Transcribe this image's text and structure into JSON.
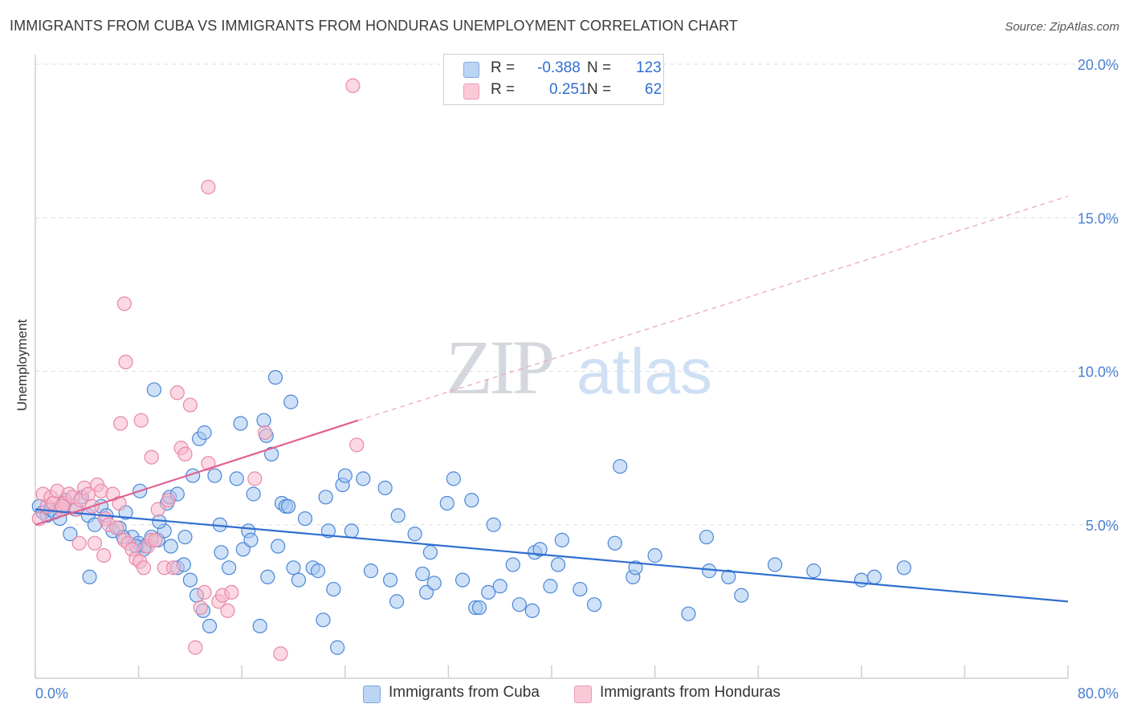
{
  "title": "IMMIGRANTS FROM CUBA VS IMMIGRANTS FROM HONDURAS UNEMPLOYMENT CORRELATION CHART",
  "source": "Source: ZipAtlas.com",
  "watermark": {
    "zip": "ZIP",
    "atlas": "atlas"
  },
  "legend": {
    "rows": [
      {
        "r_label": "R =",
        "r_value": "-0.388",
        "n_label": "N =",
        "n_value": "123",
        "color": "#a8c8f0"
      },
      {
        "r_label": "R =",
        "r_value": "0.251",
        "n_label": "N =",
        "n_value": "62",
        "color": "#f7b8cb"
      }
    ]
  },
  "bottom_legend": [
    {
      "label": "Immigrants from Cuba",
      "color": "#a8c8f0"
    },
    {
      "label": "Immigrants from Honduras",
      "color": "#f7b8cb"
    }
  ],
  "chart_data": {
    "type": "scatter",
    "xlabel": "",
    "ylabel": "Unemployment",
    "xlim": [
      0,
      80
    ],
    "ylim": [
      0,
      20
    ],
    "x_tick_labels": [
      "0.0%",
      "80.0%"
    ],
    "y_ticks": [
      5,
      10,
      15,
      20
    ],
    "y_tick_labels": [
      "5.0%",
      "10.0%",
      "15.0%",
      "20.0%"
    ],
    "grid": true,
    "legend_position": "top-center",
    "series": [
      {
        "name": "Immigrants from Cuba",
        "color": "#4a86d8",
        "fill": "#a8c8f0",
        "trend": {
          "x": [
            0,
            80
          ],
          "y": [
            5.5,
            2.5
          ],
          "color": "#2f6fcf"
        },
        "points": [
          [
            0.3,
            5.6
          ],
          [
            0.6,
            5.4
          ],
          [
            0.9,
            5.3
          ],
          [
            1.2,
            5.5
          ],
          [
            1.5,
            5.4
          ],
          [
            1.9,
            5.2
          ],
          [
            2.3,
            5.8
          ],
          [
            2.7,
            4.7
          ],
          [
            3.1,
            5.5
          ],
          [
            3.6,
            5.9
          ],
          [
            4.1,
            5.3
          ],
          [
            4.6,
            5.0
          ],
          [
            5.1,
            5.6
          ],
          [
            5.5,
            5.3
          ],
          [
            6.0,
            4.8
          ],
          [
            6.5,
            4.9
          ],
          [
            7.0,
            5.4
          ],
          [
            7.5,
            4.6
          ],
          [
            8.0,
            4.4
          ],
          [
            8.5,
            4.3
          ],
          [
            9.0,
            4.6
          ],
          [
            9.5,
            4.5
          ],
          [
            10.0,
            4.8
          ],
          [
            10.5,
            4.3
          ],
          [
            11.0,
            3.6
          ],
          [
            11.5,
            3.7
          ],
          [
            12.0,
            3.2
          ],
          [
            12.5,
            2.7
          ],
          [
            13.0,
            2.2
          ],
          [
            13.5,
            1.7
          ],
          [
            8.4,
            4.2
          ],
          [
            8.1,
            6.1
          ],
          [
            9.6,
            5.1
          ],
          [
            10.2,
            5.7
          ],
          [
            10.4,
            5.9
          ],
          [
            11.0,
            6.0
          ],
          [
            11.6,
            4.6
          ],
          [
            12.2,
            6.6
          ],
          [
            12.7,
            7.8
          ],
          [
            13.1,
            8.0
          ],
          [
            13.9,
            6.6
          ],
          [
            14.3,
            5.0
          ],
          [
            14.4,
            4.1
          ],
          [
            15.0,
            3.6
          ],
          [
            15.6,
            6.5
          ],
          [
            15.9,
            8.3
          ],
          [
            16.1,
            4.2
          ],
          [
            16.5,
            4.8
          ],
          [
            16.7,
            4.5
          ],
          [
            16.9,
            6.0
          ],
          [
            17.4,
            1.7
          ],
          [
            17.7,
            8.4
          ],
          [
            17.9,
            7.9
          ],
          [
            18.0,
            3.3
          ],
          [
            18.3,
            7.3
          ],
          [
            18.6,
            9.8
          ],
          [
            18.8,
            4.3
          ],
          [
            19.1,
            5.7
          ],
          [
            19.4,
            5.6
          ],
          [
            19.6,
            5.6
          ],
          [
            19.8,
            9.0
          ],
          [
            20.0,
            3.6
          ],
          [
            20.4,
            3.2
          ],
          [
            20.9,
            5.2
          ],
          [
            21.5,
            3.6
          ],
          [
            21.9,
            3.5
          ],
          [
            22.3,
            1.9
          ],
          [
            22.5,
            5.9
          ],
          [
            22.7,
            4.8
          ],
          [
            23.1,
            2.9
          ],
          [
            23.4,
            1.0
          ],
          [
            23.8,
            6.3
          ],
          [
            24.0,
            6.6
          ],
          [
            24.5,
            4.8
          ],
          [
            25.4,
            6.5
          ],
          [
            26.0,
            3.5
          ],
          [
            27.1,
            6.2
          ],
          [
            27.5,
            3.2
          ],
          [
            28.0,
            2.5
          ],
          [
            28.1,
            5.3
          ],
          [
            29.4,
            4.7
          ],
          [
            30.0,
            3.4
          ],
          [
            30.3,
            2.8
          ],
          [
            30.6,
            4.1
          ],
          [
            30.9,
            3.1
          ],
          [
            31.9,
            5.7
          ],
          [
            32.4,
            6.5
          ],
          [
            33.1,
            3.2
          ],
          [
            33.8,
            5.8
          ],
          [
            34.1,
            2.3
          ],
          [
            34.4,
            2.3
          ],
          [
            35.1,
            2.8
          ],
          [
            35.5,
            5.0
          ],
          [
            36.0,
            3.0
          ],
          [
            37.0,
            3.7
          ],
          [
            37.5,
            2.4
          ],
          [
            38.5,
            2.2
          ],
          [
            38.7,
            4.1
          ],
          [
            39.1,
            4.2
          ],
          [
            39.9,
            3.0
          ],
          [
            40.5,
            3.7
          ],
          [
            40.8,
            4.5
          ],
          [
            42.2,
            2.9
          ],
          [
            43.3,
            2.4
          ],
          [
            44.9,
            4.4
          ],
          [
            45.3,
            6.9
          ],
          [
            46.3,
            3.3
          ],
          [
            46.5,
            3.6
          ],
          [
            48.0,
            4.0
          ],
          [
            50.6,
            2.1
          ],
          [
            52.0,
            4.6
          ],
          [
            52.2,
            3.5
          ],
          [
            53.7,
            3.3
          ],
          [
            54.7,
            2.7
          ],
          [
            57.3,
            3.7
          ],
          [
            60.3,
            3.5
          ],
          [
            64.0,
            3.2
          ],
          [
            65.0,
            3.3
          ],
          [
            67.3,
            3.6
          ],
          [
            4.2,
            3.3
          ],
          [
            6.8,
            4.6
          ],
          [
            7.8,
            4.3
          ],
          [
            9.2,
            9.4
          ]
        ]
      },
      {
        "name": "Immigrants from Honduras",
        "color": "#e888a8",
        "fill": "#f7b8cb",
        "trend": {
          "x": [
            0,
            25
          ],
          "y": [
            5.0,
            8.4
          ],
          "dashed_to": [
            80,
            15.7
          ],
          "color": "#e06090"
        },
        "points": [
          [
            0.3,
            5.2
          ],
          [
            0.6,
            6.0
          ],
          [
            0.9,
            5.6
          ],
          [
            1.2,
            5.9
          ],
          [
            1.4,
            5.7
          ],
          [
            1.7,
            6.1
          ],
          [
            2.0,
            5.5
          ],
          [
            2.3,
            5.7
          ],
          [
            2.6,
            6.0
          ],
          [
            2.9,
            5.9
          ],
          [
            3.2,
            5.5
          ],
          [
            3.5,
            5.8
          ],
          [
            3.8,
            6.2
          ],
          [
            4.1,
            6.0
          ],
          [
            4.4,
            5.6
          ],
          [
            4.8,
            6.3
          ],
          [
            5.1,
            6.1
          ],
          [
            5.4,
            5.2
          ],
          [
            5.7,
            5.0
          ],
          [
            6.0,
            6.0
          ],
          [
            6.3,
            4.9
          ],
          [
            6.6,
            8.3
          ],
          [
            6.9,
            4.5
          ],
          [
            7.2,
            4.4
          ],
          [
            7.5,
            4.2
          ],
          [
            7.8,
            3.9
          ],
          [
            8.1,
            3.8
          ],
          [
            8.4,
            3.6
          ],
          [
            8.7,
            4.3
          ],
          [
            9.0,
            4.5
          ],
          [
            9.3,
            4.5
          ],
          [
            9.5,
            5.5
          ],
          [
            10.0,
            3.6
          ],
          [
            10.3,
            5.8
          ],
          [
            10.7,
            3.6
          ],
          [
            11.0,
            9.3
          ],
          [
            11.3,
            7.5
          ],
          [
            11.6,
            7.3
          ],
          [
            12.0,
            8.9
          ],
          [
            12.4,
            1.0
          ],
          [
            12.8,
            2.3
          ],
          [
            13.1,
            2.8
          ],
          [
            13.4,
            7.0
          ],
          [
            14.2,
            2.5
          ],
          [
            14.5,
            2.7
          ],
          [
            14.9,
            2.2
          ],
          [
            15.2,
            2.8
          ],
          [
            17.0,
            6.5
          ],
          [
            17.8,
            8.0
          ],
          [
            19.0,
            0.8
          ],
          [
            24.9,
            7.6
          ],
          [
            24.6,
            19.3
          ],
          [
            13.4,
            16.0
          ],
          [
            6.9,
            12.2
          ],
          [
            7.0,
            10.3
          ],
          [
            9.0,
            7.2
          ],
          [
            8.2,
            8.4
          ],
          [
            6.5,
            5.7
          ],
          [
            4.6,
            4.4
          ],
          [
            5.3,
            4.0
          ],
          [
            3.4,
            4.4
          ],
          [
            2.1,
            5.6
          ]
        ]
      }
    ]
  }
}
